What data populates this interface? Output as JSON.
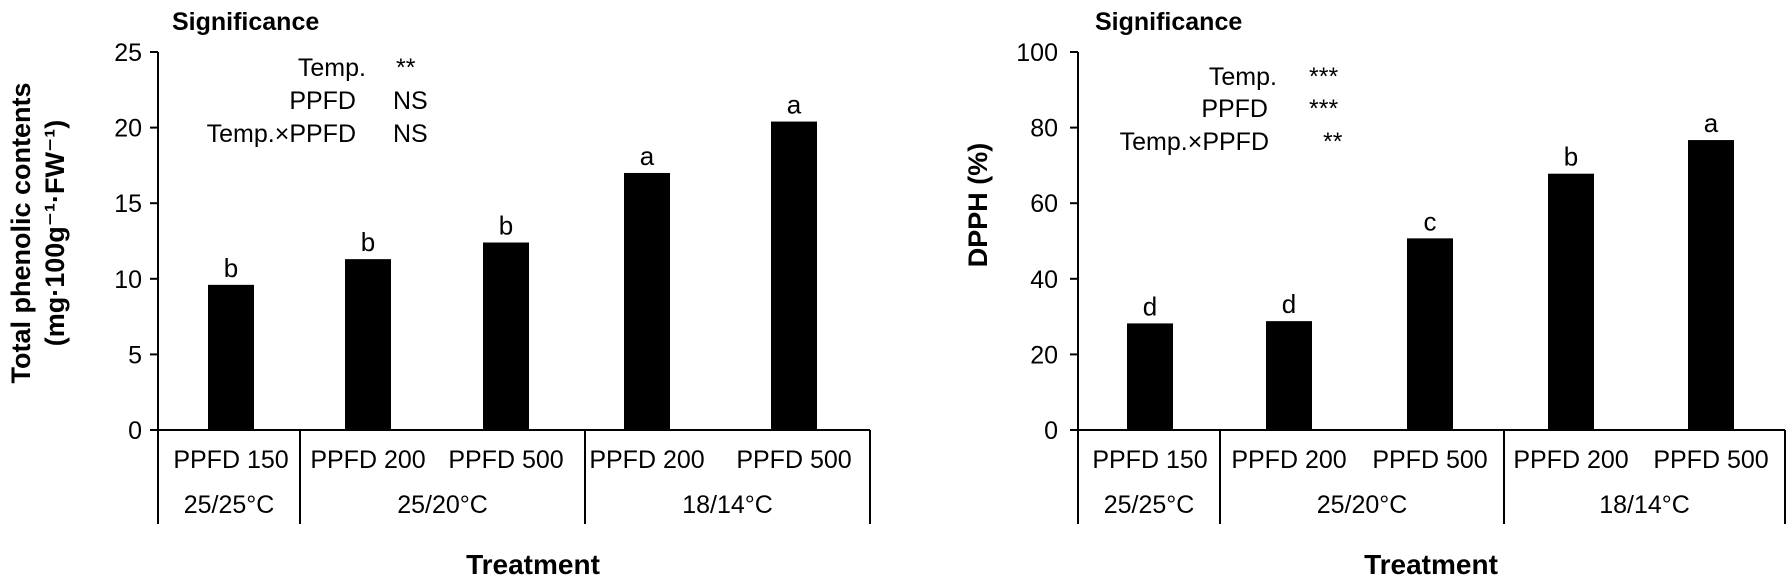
{
  "chart_data": [
    {
      "type": "bar",
      "title": "Significance",
      "xlabel": "Treatment",
      "ylabel_line1": "Total phenolic contents",
      "ylabel_line2": "(mg·100g⁻¹·FW⁻¹)",
      "ylim": [
        0,
        25
      ],
      "yticks": [
        "0",
        "5",
        "10",
        "15",
        "20",
        "25"
      ],
      "categories": [
        "PPFD 150",
        "PPFD 200",
        "PPFD 500",
        "PPFD 200",
        "PPFD 500"
      ],
      "groups": [
        "25/25°C",
        "25/20°C",
        "18/14°C"
      ],
      "values": [
        9.6,
        11.3,
        12.4,
        17.0,
        20.4
      ],
      "letters": [
        "b",
        "b",
        "b",
        "a",
        "a"
      ],
      "significance": [
        {
          "factor": "Temp.",
          "value": "**"
        },
        {
          "factor": "PPFD",
          "value": "NS"
        },
        {
          "factor": "Temp.×PPFD",
          "value": "NS"
        }
      ],
      "colors": {
        "bar": "#000000"
      }
    },
    {
      "type": "bar",
      "title": "Significance",
      "xlabel": "Treatment",
      "ylabel": "DPPH (%)",
      "ylim": [
        0,
        100
      ],
      "yticks": [
        "0",
        "20",
        "40",
        "60",
        "80",
        "100"
      ],
      "categories": [
        "PPFD 150",
        "PPFD 200",
        "PPFD 500",
        "PPFD 200",
        "PPFD 500"
      ],
      "groups": [
        "25/25°C",
        "25/20°C",
        "18/14°C"
      ],
      "values": [
        28.2,
        28.8,
        50.7,
        67.8,
        76.7
      ],
      "letters": [
        "d",
        "d",
        "c",
        "b",
        "a"
      ],
      "significance": [
        {
          "factor": "Temp.",
          "value": "***"
        },
        {
          "factor": "PPFD",
          "value": "***"
        },
        {
          "factor": "Temp.×PPFD",
          "value": "**"
        }
      ],
      "colors": {
        "bar": "#000000"
      }
    }
  ]
}
